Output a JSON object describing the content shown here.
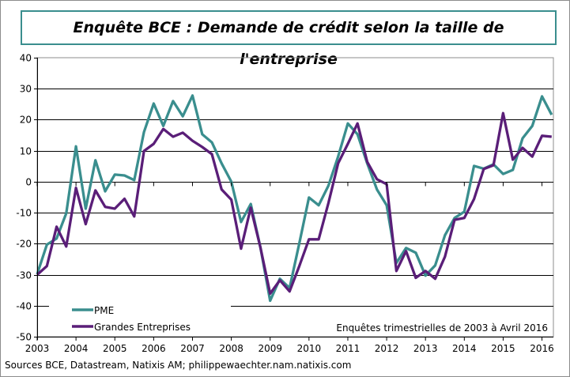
{
  "chart_data": {
    "type": "line",
    "title": "Enquête BCE : Demande de crédit selon la taille de l'entreprise",
    "x_start": "2003-Q1",
    "x_frequency": "quarterly",
    "x_tick_labels": [
      "2003",
      "2004",
      "2005",
      "2006",
      "2007",
      "2008",
      "2009",
      "2010",
      "2011",
      "2012",
      "2013",
      "2014",
      "2015",
      "2016"
    ],
    "ylim": [
      -50,
      40
    ],
    "y_ticks": [
      40,
      30,
      20,
      10,
      0,
      -10,
      -20,
      -30,
      -40,
      -50
    ],
    "grid": true,
    "legend_position": "bottom-left",
    "annotation": "Enquêtes trimestrielles  de 2003 à Avril 2016",
    "series": [
      {
        "name": "PME",
        "color": "#3a8e8e",
        "values": [
          -29.8,
          -20.3,
          -18.3,
          -10.2,
          11.4,
          -8.7,
          6.9,
          -3.1,
          2.3,
          2.0,
          0.5,
          16.0,
          25.2,
          18.0,
          26.0,
          21.1,
          27.8,
          15.3,
          12.7,
          5.9,
          0.0,
          -13.0,
          -7.2,
          -21.2,
          -38.4,
          -31.3,
          -34.3,
          -19.9,
          -5.1,
          -7.6,
          -1.3,
          8.1,
          18.8,
          15.3,
          5.9,
          -2.5,
          -7.6,
          -26.2,
          -21.4,
          -22.9,
          -30.3,
          -27.0,
          -17.3,
          -11.7,
          -9.7,
          5.1,
          4.2,
          5.6,
          2.5,
          3.8,
          14.0,
          18.0,
          27.5,
          21.6
        ]
      },
      {
        "name": "Grandes Entreprises",
        "color": "#5a1e78",
        "values": [
          -30.0,
          -27.2,
          -14.5,
          -20.9,
          -2.0,
          -13.7,
          -2.8,
          -8.1,
          -8.7,
          -5.5,
          -11.2,
          9.9,
          12.2,
          17.0,
          14.5,
          15.8,
          13.2,
          11.2,
          8.9,
          -2.5,
          -5.8,
          -21.6,
          -8.4,
          -21.2,
          -36.1,
          -31.8,
          -35.4,
          -27.2,
          -18.6,
          -18.6,
          -6.9,
          5.9,
          12.2,
          18.8,
          6.4,
          0.8,
          -0.8,
          -28.8,
          -22.4,
          -31.0,
          -28.8,
          -31.3,
          -24.2,
          -12.3,
          -11.7,
          -5.6,
          4.1,
          5.3,
          22.1,
          7.1,
          10.9,
          8.1,
          14.8,
          14.5
        ]
      }
    ]
  },
  "footer": {
    "source": "Sources BCE, Datastream, Natixis AM; philippewaechter.nam.natixis.com"
  }
}
